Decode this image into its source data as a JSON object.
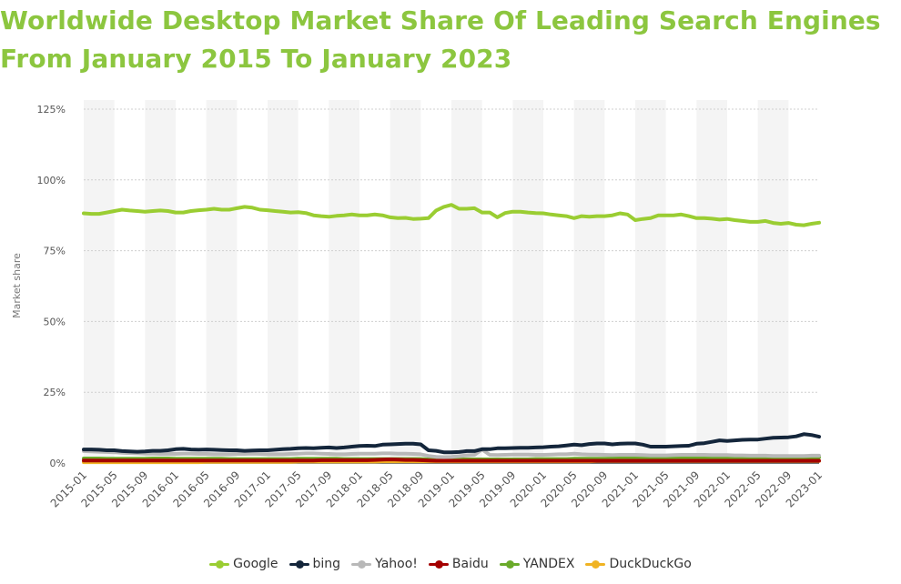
{
  "chart_data": {
    "type": "line",
    "title": "Worldwide Desktop Market Share Of Leading Search Engines From January 2015 To January 2023",
    "title_lines": [
      "Worldwide Desktop Market Share Of Leading Search Engines",
      "From January 2015 To January 2023"
    ],
    "ylabel": "Market share",
    "xlabel": "",
    "ylim": [
      0,
      125
    ],
    "yticks": [
      0,
      25,
      50,
      75,
      100,
      125
    ],
    "ytick_labels": [
      "0%",
      "25%",
      "50%",
      "75%",
      "100%",
      "125%"
    ],
    "grid": true,
    "legend_position": "bottom",
    "x_start": "2015-01",
    "x_labels": [
      "2015-01",
      "2015-05",
      "2015-09",
      "2016-01",
      "2016-05",
      "2016-09",
      "2017-01",
      "2017-05",
      "2017-09",
      "2018-01",
      "2018-05",
      "2018-09",
      "2019-01",
      "2019-05",
      "2019-09",
      "2020-01",
      "2020-05",
      "2020-09",
      "2021-01",
      "2021-05",
      "2021-09",
      "2022-01",
      "2022-05",
      "2022-09",
      "2023-01"
    ],
    "x": [
      "2015-01",
      "2015-02",
      "2015-03",
      "2015-04",
      "2015-05",
      "2015-06",
      "2015-07",
      "2015-08",
      "2015-09",
      "2015-10",
      "2015-11",
      "2015-12",
      "2016-01",
      "2016-02",
      "2016-03",
      "2016-04",
      "2016-05",
      "2016-06",
      "2016-07",
      "2016-08",
      "2016-09",
      "2016-10",
      "2016-11",
      "2016-12",
      "2017-01",
      "2017-02",
      "2017-03",
      "2017-04",
      "2017-05",
      "2017-06",
      "2017-07",
      "2017-08",
      "2017-09",
      "2017-10",
      "2017-11",
      "2017-12",
      "2018-01",
      "2018-02",
      "2018-03",
      "2018-04",
      "2018-05",
      "2018-06",
      "2018-07",
      "2018-08",
      "2018-09",
      "2018-10",
      "2018-11",
      "2018-12",
      "2019-01",
      "2019-02",
      "2019-03",
      "2019-04",
      "2019-05",
      "2019-06",
      "2019-07",
      "2019-08",
      "2019-09",
      "2019-10",
      "2019-11",
      "2019-12",
      "2020-01",
      "2020-02",
      "2020-03",
      "2020-04",
      "2020-05",
      "2020-06",
      "2020-07",
      "2020-08",
      "2020-09",
      "2020-10",
      "2020-11",
      "2020-12",
      "2021-01",
      "2021-02",
      "2021-03",
      "2021-04",
      "2021-05",
      "2021-06",
      "2021-07",
      "2021-08",
      "2021-09",
      "2021-10",
      "2021-11",
      "2021-12",
      "2022-01",
      "2022-02",
      "2022-03",
      "2022-04",
      "2022-05",
      "2022-06",
      "2022-07",
      "2022-08",
      "2022-09",
      "2022-10",
      "2022-11",
      "2022-12",
      "2023-01"
    ],
    "series": [
      {
        "name": "Google",
        "color": "#9acd32",
        "values": [
          88.2,
          88,
          88,
          88.5,
          89,
          89.5,
          89.2,
          89,
          88.8,
          89,
          89.2,
          89,
          88.5,
          88.5,
          89,
          89.3,
          89.5,
          89.8,
          89.5,
          89.5,
          90,
          90.5,
          90.2,
          89.5,
          89.3,
          89,
          88.8,
          88.5,
          88.6,
          88.3,
          87.5,
          87.2,
          87,
          87.3,
          87.5,
          87.8,
          87.5,
          87.5,
          87.8,
          87.5,
          86.8,
          86.5,
          86.6,
          86.2,
          86.3,
          86.5,
          89.2,
          90.5,
          91.2,
          89.8,
          89.8,
          90,
          88.5,
          88.5,
          86.8,
          88.3,
          88.8,
          88.8,
          88.5,
          88.3,
          88.2,
          87.8,
          87.5,
          87.2,
          86.5,
          87.2,
          87,
          87.2,
          87.2,
          87.5,
          88.2,
          87.8,
          85.8,
          86.2,
          86.5,
          87.5,
          87.5,
          87.5,
          87.8,
          87.2,
          86.5,
          86.5,
          86.3,
          86,
          86.2,
          85.8,
          85.5,
          85.2,
          85.2,
          85.5,
          84.8,
          84.5,
          84.8,
          84.2,
          84,
          84.5,
          84.9
        ]
      },
      {
        "name": "bing",
        "color": "#14263b",
        "values": [
          4.8,
          4.8,
          4.7,
          4.5,
          4.5,
          4.2,
          4.1,
          4,
          4.1,
          4.3,
          4.3,
          4.5,
          4.9,
          5,
          4.8,
          4.7,
          4.8,
          4.7,
          4.6,
          4.5,
          4.5,
          4.3,
          4.4,
          4.5,
          4.5,
          4.7,
          4.9,
          5,
          5.2,
          5.3,
          5.2,
          5.4,
          5.5,
          5.3,
          5.5,
          5.8,
          6,
          6.1,
          6,
          6.5,
          6.6,
          6.7,
          6.8,
          6.8,
          6.6,
          4.5,
          4.3,
          3.8,
          3.8,
          3.9,
          4.2,
          4.2,
          4.9,
          4.9,
          5.2,
          5.2,
          5.3,
          5.4,
          5.4,
          5.5,
          5.6,
          5.8,
          5.9,
          6.2,
          6.5,
          6.3,
          6.7,
          6.9,
          6.9,
          6.6,
          6.8,
          6.9,
          6.9,
          6.5,
          5.8,
          5.8,
          5.8,
          5.9,
          6,
          6.1,
          6.8,
          7,
          7.5,
          8,
          7.8,
          8,
          8.2,
          8.3,
          8.3,
          8.6,
          8.9,
          9,
          9.1,
          9.4,
          10.2,
          9.9,
          9.3
        ]
      },
      {
        "name": "Yahoo!",
        "color": "#b8b8b8",
        "values": [
          4.2,
          4.1,
          4,
          3.9,
          3.8,
          3.6,
          3.5,
          3.4,
          3.3,
          3.3,
          3.2,
          3.2,
          3.2,
          3.3,
          3.3,
          3.2,
          3.2,
          3.1,
          3.1,
          3.1,
          3.2,
          3.2,
          3.3,
          3.2,
          3.1,
          3.1,
          3.1,
          3.2,
          3.3,
          3.4,
          3.4,
          3.3,
          3.2,
          3.1,
          3.1,
          3.2,
          3.3,
          3.3,
          3.3,
          3.4,
          3.4,
          3.3,
          3.3,
          3.2,
          3.1,
          2.5,
          2.2,
          2.1,
          2.2,
          2.4,
          2.7,
          2.9,
          4.8,
          2.9,
          2.8,
          2.9,
          3,
          3,
          3,
          2.9,
          2.9,
          3,
          3.1,
          3.1,
          3.3,
          3.1,
          3,
          3,
          2.9,
          2.8,
          2.9,
          2.9,
          2.9,
          2.8,
          2.7,
          2.7,
          2.7,
          2.8,
          2.9,
          2.9,
          2.9,
          2.9,
          2.8,
          2.8,
          2.8,
          2.7,
          2.7,
          2.6,
          2.6,
          2.6,
          2.5,
          2.5,
          2.5,
          2.5,
          2.5,
          2.6,
          2.6
        ]
      },
      {
        "name": "Baidu",
        "color": "#a40000",
        "values": [
          0.9,
          0.9,
          0.9,
          0.9,
          0.9,
          0.9,
          0.9,
          0.9,
          0.9,
          0.9,
          0.9,
          0.9,
          0.9,
          0.9,
          0.9,
          0.9,
          0.9,
          0.9,
          0.9,
          0.9,
          0.9,
          0.9,
          0.9,
          0.9,
          0.9,
          0.9,
          0.9,
          0.9,
          0.9,
          0.9,
          0.9,
          1,
          1,
          1,
          1,
          1,
          1,
          1,
          1.1,
          1.2,
          1.3,
          1.2,
          1.1,
          1.1,
          1,
          0.9,
          0.8,
          0.8,
          0.8,
          0.8,
          0.8,
          0.8,
          0.8,
          0.8,
          0.8,
          0.8,
          0.8,
          0.8,
          0.8,
          0.8,
          0.8,
          0.8,
          0.8,
          0.8,
          0.8,
          0.8,
          0.8,
          0.8,
          0.8,
          0.8,
          0.8,
          0.8,
          0.8,
          0.8,
          0.8,
          0.8,
          0.8,
          0.8,
          0.8,
          0.8,
          0.8,
          0.8,
          0.8,
          0.8,
          0.8,
          0.8,
          0.8,
          0.8,
          0.8,
          0.8,
          0.8,
          0.8,
          0.8,
          0.8,
          0.8,
          0.8,
          0.8
        ]
      },
      {
        "name": "YANDEX",
        "color": "#6aaa2a",
        "values": [
          1.6,
          1.6,
          1.6,
          1.5,
          1.5,
          1.5,
          1.5,
          1.5,
          1.5,
          1.6,
          1.6,
          1.6,
          1.5,
          1.5,
          1.5,
          1.5,
          1.5,
          1.5,
          1.5,
          1.4,
          1.4,
          1.4,
          1.4,
          1.4,
          1.4,
          1.4,
          1.4,
          1.4,
          1.5,
          1.5,
          1.5,
          1.5,
          1.5,
          1.5,
          1.4,
          1.4,
          1.4,
          1.4,
          1.4,
          1.4,
          1.4,
          1.4,
          1.4,
          1.4,
          1.4,
          1.3,
          1.3,
          1.3,
          1.3,
          1.3,
          1.3,
          1.3,
          1.3,
          1.3,
          1.3,
          1.3,
          1.3,
          1.3,
          1.3,
          1.4,
          1.4,
          1.4,
          1.4,
          1.4,
          1.5,
          1.5,
          1.5,
          1.5,
          1.5,
          1.6,
          1.6,
          1.6,
          1.6,
          1.6,
          1.7,
          1.7,
          1.7,
          1.8,
          1.8,
          1.8,
          1.8,
          1.8,
          1.9,
          1.9,
          1.9,
          1.9,
          1.9,
          2,
          2,
          2,
          2,
          2,
          2,
          2,
          2,
          2,
          2
        ]
      },
      {
        "name": "DuckDuckGo",
        "color": "#f0b323",
        "values": [
          0.3,
          0.3,
          0.3,
          0.3,
          0.3,
          0.3,
          0.3,
          0.3,
          0.3,
          0.3,
          0.3,
          0.3,
          0.3,
          0.3,
          0.3,
          0.3,
          0.4,
          0.4,
          0.4,
          0.4,
          0.4,
          0.4,
          0.4,
          0.4,
          0.4,
          0.4,
          0.4,
          0.4,
          0.5,
          0.5,
          0.5,
          0.5,
          0.5,
          0.5,
          0.5,
          0.5,
          0.5,
          0.5,
          0.5,
          0.6,
          0.6,
          0.6,
          0.6,
          0.6,
          0.6,
          0.6,
          0.6,
          0.6,
          0.6,
          0.6,
          0.6,
          0.6,
          0.6,
          0.6,
          0.6,
          0.6,
          0.6,
          0.6,
          0.6,
          0.6,
          0.6,
          0.6,
          0.6,
          0.6,
          0.6,
          0.6,
          0.6,
          0.7,
          0.7,
          0.7,
          0.7,
          0.7,
          0.7,
          0.7,
          0.7,
          0.7,
          0.7,
          0.7,
          0.7,
          0.7,
          0.7,
          0.7,
          0.7,
          0.7,
          0.7,
          0.7,
          0.7,
          0.7,
          0.7,
          0.7,
          0.7,
          0.7,
          0.7,
          0.7,
          0.7,
          0.7,
          0.7
        ]
      }
    ]
  }
}
